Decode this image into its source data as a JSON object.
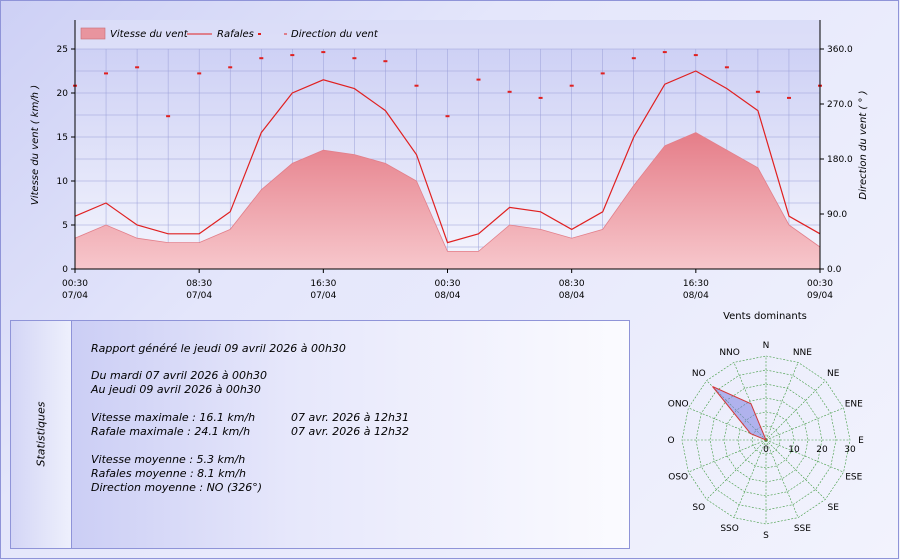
{
  "chart_data": [
    {
      "type": "area",
      "title": "",
      "legend": {
        "placement": "top",
        "entries": [
          "Vitesse du vent",
          "Rafales",
          "Direction du vent"
        ]
      },
      "ylabel": "Vitesse du vent ( km/h )",
      "ylim": [
        0,
        25
      ],
      "yticks": [
        "0",
        "5",
        "10",
        "15",
        "20",
        "25"
      ],
      "y2label": "Direction du vent ( ° )",
      "y2lim": [
        0,
        360
      ],
      "y2ticks": [
        "0.0",
        "90.0",
        "180.0",
        "270.0",
        "360.0"
      ],
      "xticks": [
        {
          "time": "00:30",
          "date": "07/04"
        },
        {
          "time": "08:30",
          "date": "07/04"
        },
        {
          "time": "16:30",
          "date": "07/04"
        },
        {
          "time": "00:30",
          "date": "08/04"
        },
        {
          "time": "08:30",
          "date": "08/04"
        },
        {
          "time": "16:30",
          "date": "08/04"
        },
        {
          "time": "00:30",
          "date": "09/04"
        }
      ],
      "grid": true,
      "x": [
        0,
        2,
        4,
        6,
        8,
        10,
        12,
        14,
        16,
        18,
        20,
        22,
        24,
        26,
        28,
        30,
        32,
        34,
        36,
        38,
        40,
        42,
        44,
        46,
        48
      ],
      "series": [
        {
          "name": "Vitesse du vent",
          "style": "area",
          "color": "#e88a94",
          "values": [
            3.5,
            5,
            3.5,
            3,
            3,
            4.5,
            9,
            12,
            13.5,
            13,
            12,
            10,
            2,
            2,
            5,
            4.5,
            3.5,
            4.5,
            9.5,
            14,
            15.5,
            13.5,
            11.5,
            5,
            2.5
          ]
        },
        {
          "name": "Rafales",
          "style": "line",
          "color": "#e02020",
          "values": [
            6,
            7.5,
            5,
            4,
            4,
            6.5,
            15.5,
            20,
            21.5,
            20.5,
            18,
            13,
            3,
            4,
            7,
            6.5,
            4.5,
            6.5,
            15,
            21,
            22.5,
            20.5,
            18,
            6,
            4
          ]
        },
        {
          "name": "Direction du vent",
          "style": "points",
          "color": "#e02020",
          "axis": "right",
          "values": [
            300,
            320,
            330,
            250,
            320,
            330,
            345,
            350,
            355,
            345,
            340,
            300,
            250,
            310,
            290,
            280,
            300,
            320,
            345,
            355,
            350,
            330,
            290,
            280,
            300
          ]
        }
      ]
    },
    {
      "type": "radar",
      "title": "Vents dominants",
      "directions": [
        "N",
        "NNE",
        "NE",
        "ENE",
        "E",
        "ESE",
        "SE",
        "SSE",
        "S",
        "SSO",
        "SO",
        "OSO",
        "O",
        "ONO",
        "NO",
        "NNO"
      ],
      "radial_ticks": [
        "0",
        "10",
        "20",
        "30"
      ],
      "rmax": 30,
      "values": [
        0,
        0,
        0,
        0,
        0,
        0,
        0,
        0,
        0,
        0,
        0,
        0,
        0,
        6,
        27,
        14
      ]
    }
  ],
  "stats": {
    "title": "Statistiques",
    "generated": "Rapport généré le jeudi 09 avril 2026 à 00h30",
    "from": "Du mardi 07 avril 2026 à 00h30",
    "to": "Au jeudi 09 avril 2026 à 00h30",
    "max_speed": "Vitesse maximale : 16.1 km/h",
    "max_speed_date": "07 avr. 2026 à 12h31",
    "max_gust": "Rafale maximale : 24.1 km/h",
    "max_gust_date": "07 avr. 2026 à 12h32",
    "avg_speed": "Vitesse moyenne : 5.3 km/h",
    "avg_gust": "Rafales moyenne : 8.1 km/h",
    "avg_dir": "Direction moyenne : NO (326°)"
  }
}
